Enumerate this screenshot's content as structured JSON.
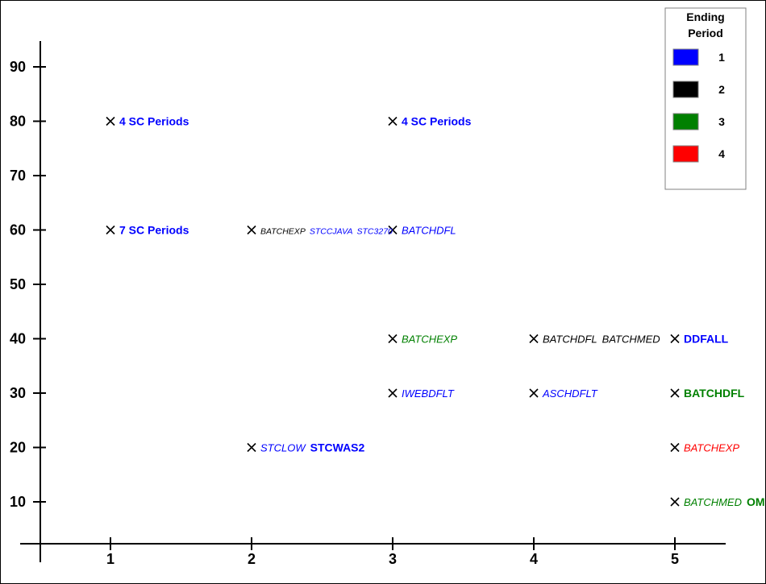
{
  "chart_data": {
    "type": "scatter",
    "xlim": [
      0.5,
      5.35
    ],
    "ylim": [
      0,
      100
    ],
    "x_ticks": [
      1,
      2,
      3,
      4,
      5
    ],
    "y_ticks": [
      10,
      20,
      30,
      40,
      50,
      60,
      70,
      80,
      90
    ],
    "grid": false,
    "legend": {
      "title_line1": "Ending",
      "title_line2": "Period",
      "placement": "top-right",
      "entries": [
        {
          "label": "1",
          "color": "#0000ff"
        },
        {
          "label": "2",
          "color": "#000000"
        },
        {
          "label": "3",
          "color": "#008000"
        },
        {
          "label": "4",
          "color": "#ff0000"
        }
      ]
    },
    "points": [
      {
        "x": 1,
        "y": 80,
        "labels": [
          {
            "text": "4 SC Periods",
            "period": 1,
            "style": "bold"
          }
        ]
      },
      {
        "x": 1,
        "y": 60,
        "labels": [
          {
            "text": "7 SC Periods",
            "period": 1,
            "style": "bold"
          }
        ]
      },
      {
        "x": 2,
        "y": 60,
        "labels": [
          {
            "text": "BATCHEXP",
            "period": 2,
            "style": "italic-small"
          },
          {
            "text": "STCCJAVA",
            "period": 1,
            "style": "italic-small"
          },
          {
            "text": "STC3270",
            "period": 1,
            "style": "italic-small"
          }
        ]
      },
      {
        "x": 2,
        "y": 20,
        "labels": [
          {
            "text": "STCLOW",
            "period": 1,
            "style": "italic"
          },
          {
            "text": "STCWAS2",
            "period": 1,
            "style": "bold"
          }
        ]
      },
      {
        "x": 3,
        "y": 80,
        "labels": [
          {
            "text": "4 SC Periods",
            "period": 1,
            "style": "bold"
          }
        ]
      },
      {
        "x": 3,
        "y": 60,
        "labels": [
          {
            "text": "BATCHDFL",
            "period": 1,
            "style": "italic"
          }
        ]
      },
      {
        "x": 3,
        "y": 40,
        "labels": [
          {
            "text": "BATCHEXP",
            "period": 3,
            "style": "italic"
          }
        ]
      },
      {
        "x": 3,
        "y": 30,
        "labels": [
          {
            "text": "IWEBDFLT",
            "period": 1,
            "style": "italic"
          }
        ]
      },
      {
        "x": 4,
        "y": 40,
        "labels": [
          {
            "text": "BATCHDFL",
            "period": 2,
            "style": "italic"
          },
          {
            "text": "BATCHMED",
            "period": 2,
            "style": "italic"
          }
        ]
      },
      {
        "x": 4,
        "y": 30,
        "labels": [
          {
            "text": "ASCHDFLT",
            "period": 1,
            "style": "italic"
          }
        ]
      },
      {
        "x": 5,
        "y": 40,
        "labels": [
          {
            "text": "DDFALL",
            "period": 1,
            "style": "bold"
          }
        ]
      },
      {
        "x": 5,
        "y": 30,
        "labels": [
          {
            "text": "BATCHDFL",
            "period": 3,
            "style": "bold"
          }
        ]
      },
      {
        "x": 5,
        "y": 20,
        "labels": [
          {
            "text": "BATCHEXP",
            "period": 4,
            "style": "italic"
          }
        ]
      },
      {
        "x": 5,
        "y": 10,
        "labels": [
          {
            "text": "BATCHMED",
            "period": 3,
            "style": "italic"
          },
          {
            "text": "OM",
            "period": 3,
            "style": "bold"
          }
        ]
      }
    ]
  }
}
